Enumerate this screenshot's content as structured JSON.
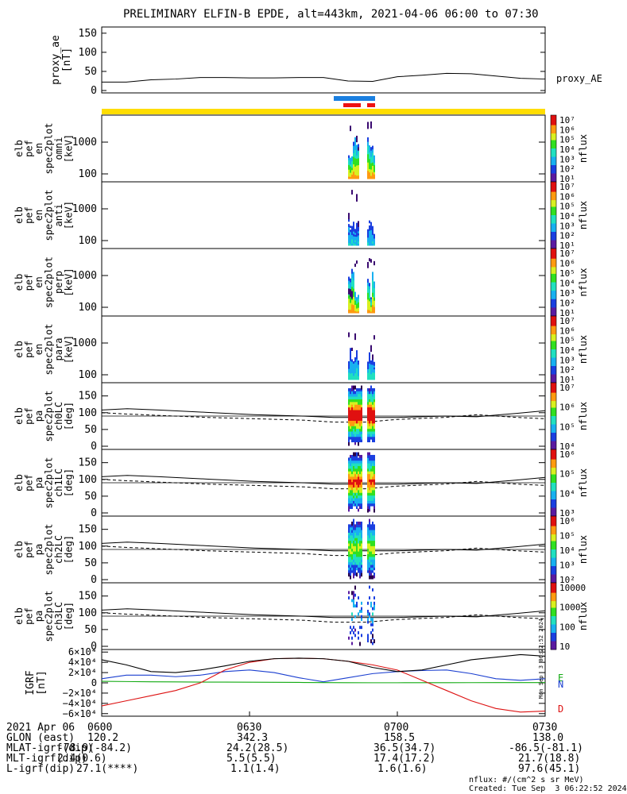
{
  "title": "PRELIMINARY ELFIN-B EPDE, alt=443km, 2021-04-06 06:00 to 07:30",
  "colors": {
    "yellow_bar": "#ffdd00",
    "blue_bar": "#1a7fe0",
    "red_bar": "#ee1111",
    "grf_black": "#000000",
    "grf_blue": "#1b3fd0",
    "grf_green": "#11aa11",
    "grf_red": "#dd1111"
  },
  "panels": [
    {
      "id": "proxy-ae",
      "ylabel": [
        "proxy_ae",
        "[nT]"
      ],
      "ticks": [
        "150",
        "100",
        "50",
        "0"
      ],
      "right_label": "proxy_AE"
    },
    {
      "id": "en-omni",
      "ylabel": [
        "elb",
        "pef",
        "en",
        "spec2plot",
        "omni",
        "[keV]"
      ],
      "ticks": [
        "1000",
        "100"
      ],
      "cb": [
        "10⁷",
        "10⁶",
        "10⁵",
        "10⁴",
        "10³",
        "10²",
        "10¹"
      ],
      "cb_title": "nflux"
    },
    {
      "id": "en-anti",
      "ylabel": [
        "elb",
        "pef",
        "en",
        "spec2plot",
        "anti",
        "[keV]"
      ],
      "ticks": [
        "1000",
        "100"
      ],
      "cb": [
        "10⁷",
        "10⁶",
        "10⁵",
        "10⁴",
        "10³",
        "10²",
        "10¹"
      ],
      "cb_title": "nflux"
    },
    {
      "id": "en-perp",
      "ylabel": [
        "elb",
        "pef",
        "en",
        "spec2plot",
        "perp",
        "[keV]"
      ],
      "ticks": [
        "1000",
        "100"
      ],
      "cb": [
        "10⁷",
        "10⁶",
        "10⁵",
        "10⁴",
        "10³",
        "10²",
        "10¹"
      ],
      "cb_title": "nflux"
    },
    {
      "id": "en-para",
      "ylabel": [
        "elb",
        "pef",
        "en",
        "spec2plot",
        "para",
        "[keV]"
      ],
      "ticks": [
        "1000",
        "100"
      ],
      "cb": [
        "10⁷",
        "10⁶",
        "10⁵",
        "10⁴",
        "10³",
        "10²",
        "10¹"
      ],
      "cb_title": "nflux"
    },
    {
      "id": "pa-ch0",
      "ylabel": [
        "elb",
        "pef",
        "pa",
        "spec2plot",
        "ch0LC",
        "[deg]"
      ],
      "ticks": [
        "150",
        "100",
        "50",
        "0"
      ],
      "cb": [
        "10⁷",
        "10⁶",
        "10⁵",
        "10⁴"
      ],
      "cb_title": "nflux"
    },
    {
      "id": "pa-ch1",
      "ylabel": [
        "elb",
        "pef",
        "pa",
        "spec2plot",
        "ch1LC",
        "[deg]"
      ],
      "ticks": [
        "150",
        "100",
        "50",
        "0"
      ],
      "cb": [
        "10⁶",
        "10⁵",
        "10⁴",
        "10³"
      ],
      "cb_title": "nflux"
    },
    {
      "id": "pa-ch2",
      "ylabel": [
        "elb",
        "pef",
        "pa",
        "spec2plot",
        "ch2LC",
        "[deg]"
      ],
      "ticks": [
        "150",
        "100",
        "50",
        "0"
      ],
      "cb": [
        "10⁶",
        "10⁵",
        "10⁴",
        "10³",
        "10²"
      ],
      "cb_title": "nflux"
    },
    {
      "id": "pa-ch3",
      "ylabel": [
        "elb",
        "pef",
        "pa",
        "spec2plot",
        "ch3LC",
        "[deg]"
      ],
      "ticks": [
        "150",
        "100",
        "50",
        "0"
      ],
      "cb": [
        "10000",
        "1000",
        "100",
        "10"
      ],
      "cb_title": "nflux"
    },
    {
      "id": "grf",
      "ylabel": [
        "IGRF",
        "[nT]"
      ],
      "ticks": [
        "6×10⁴",
        "4×10⁴",
        "2×10⁴",
        "0",
        "−2×10⁴",
        "−4×10⁴",
        "−6×10⁴"
      ],
      "right_labels": [
        "E",
        "N",
        "D"
      ]
    }
  ],
  "chart_data": [
    {
      "type": "line",
      "panel": "proxy_ae",
      "ylabel": "proxy_ae [nT]",
      "ylim": [
        0,
        160
      ],
      "x": [
        "06:00",
        "06:05",
        "06:10",
        "06:15",
        "06:20",
        "06:25",
        "06:30",
        "06:35",
        "06:40",
        "06:45",
        "06:50",
        "06:55",
        "07:00",
        "07:05",
        "07:10",
        "07:15",
        "07:20",
        "07:25",
        "07:30"
      ],
      "series": [
        {
          "name": "proxy_AE",
          "values": [
            22,
            22,
            28,
            30,
            34,
            34,
            33,
            33,
            34,
            34,
            25,
            24,
            36,
            40,
            45,
            44,
            38,
            32,
            30
          ]
        }
      ]
    },
    {
      "type": "heatmap",
      "panel": "elb_pef_en_spec2plot_omni",
      "yscale": "log",
      "ylabel": "[keV]",
      "colorbar": "nflux"
    },
    {
      "type": "heatmap",
      "panel": "elb_pef_en_spec2plot_anti",
      "yscale": "log",
      "ylabel": "[keV]",
      "colorbar": "nflux"
    },
    {
      "type": "heatmap",
      "panel": "elb_pef_en_spec2plot_perp",
      "yscale": "log",
      "ylabel": "[keV]",
      "colorbar": "nflux"
    },
    {
      "type": "heatmap",
      "panel": "elb_pef_en_spec2plot_para",
      "yscale": "log",
      "ylabel": "[keV]",
      "colorbar": "nflux"
    },
    {
      "type": "heatmap",
      "panel": "elb_pef_pa_spec2plot_ch0LC",
      "ylabel": "[deg]",
      "ylim": [
        0,
        180
      ],
      "colorbar": "nflux"
    },
    {
      "type": "heatmap",
      "panel": "elb_pef_pa_spec2plot_ch1LC",
      "ylabel": "[deg]",
      "ylim": [
        0,
        180
      ],
      "colorbar": "nflux"
    },
    {
      "type": "heatmap",
      "panel": "elb_pef_pa_spec2plot_ch2LC",
      "ylabel": "[deg]",
      "ylim": [
        0,
        180
      ],
      "colorbar": "nflux"
    },
    {
      "type": "heatmap",
      "panel": "elb_pef_pa_spec2plot_ch3LC",
      "ylabel": "[deg]",
      "ylim": [
        0,
        180
      ],
      "colorbar": "nflux"
    },
    {
      "type": "line",
      "panel": "IGRF",
      "ylabel": "IGRF [nT]",
      "ylim": [
        -60000,
        60000
      ],
      "x": [
        "06:00",
        "06:05",
        "06:10",
        "06:15",
        "06:20",
        "06:25",
        "06:30",
        "06:35",
        "06:40",
        "06:45",
        "06:50",
        "06:55",
        "07:00",
        "07:05",
        "07:10",
        "07:15",
        "07:20",
        "07:25",
        "07:30"
      ],
      "series": [
        {
          "name": "E",
          "values": [
            3000,
            2500,
            2000,
            1800,
            1500,
            1500,
            1200,
            1000,
            800,
            500,
            300,
            200,
            200,
            300,
            300,
            400,
            500,
            500,
            500
          ]
        },
        {
          "name": "N",
          "values": [
            8000,
            15000,
            15000,
            12000,
            15000,
            22000,
            25000,
            20000,
            10000,
            2000,
            10000,
            18000,
            22000,
            24000,
            25000,
            18000,
            8000,
            5000,
            8000
          ]
        },
        {
          "name": "D",
          "values": [
            -45000,
            -35000,
            -25000,
            -15000,
            0,
            25000,
            40000,
            47000,
            48000,
            47000,
            42000,
            35000,
            25000,
            5000,
            -15000,
            -35000,
            -50000,
            -57000,
            -55000
          ]
        },
        {
          "name": "",
          "values": [
            45000,
            35000,
            22000,
            20000,
            25000,
            33000,
            42000,
            47000,
            48000,
            47000,
            42000,
            30000,
            22000,
            25000,
            35000,
            45000,
            50000,
            55000,
            52000
          ]
        }
      ]
    }
  ],
  "time_axis": {
    "row_labels": [
      "2021 Apr 06",
      "GLON (east)",
      "MLAT-igrf(dip)",
      "MLT-igrf(dip)",
      "L-igrf(dip)"
    ],
    "columns": [
      {
        "time": "0600",
        "glon": "120.2",
        "mlat": "-78.9(-84.2)",
        "mlt": "2.4(0.6)",
        "l": "27.1(****)"
      },
      {
        "time": "0630",
        "glon": "342.3",
        "mlat": "24.2(28.5)",
        "mlt": "5.5(5.5)",
        "l": "1.1(1.4)"
      },
      {
        "time": "0700",
        "glon": "158.5",
        "mlat": "36.5(34.7)",
        "mlt": "17.4(17.2)",
        "l": "1.6(1.6)"
      },
      {
        "time": "0730",
        "glon": "138.0",
        "mlat": "-86.5(-81.1)",
        "mlt": "21.7(18.8)",
        "l": "97.6(45.1)"
      }
    ]
  },
  "footer": {
    "units": "nflux: #/(cm^2 s sr MeV)",
    "created": "Created: Tue Sep  3 06:22:52 2024",
    "vertical": "Mon Sep  3 06:22:52 2024"
  }
}
